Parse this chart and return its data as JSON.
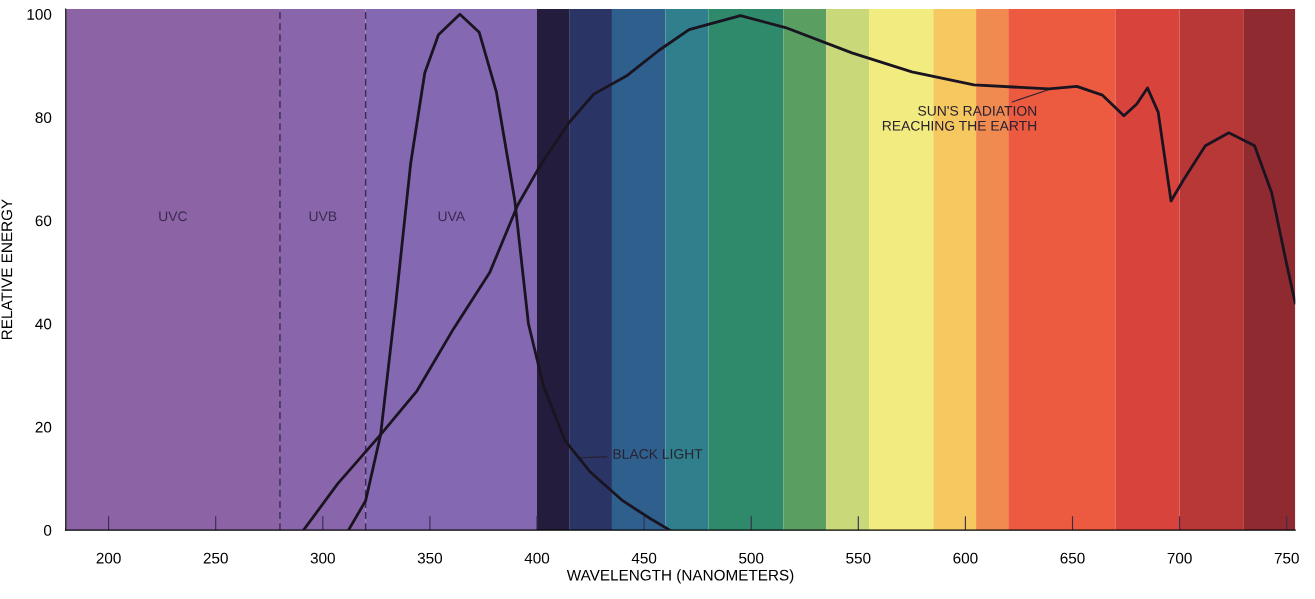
{
  "chart_data": {
    "type": "line",
    "xlabel": "WAVELENGTH (NANOMETERS)",
    "ylabel": "RELATIVE ENERGY",
    "xlim": [
      180,
      754
    ],
    "ylim": [
      0,
      101
    ],
    "xticks": [
      200,
      250,
      300,
      350,
      400,
      450,
      500,
      550,
      600,
      650,
      700,
      750
    ],
    "yticks": [
      0,
      20,
      40,
      60,
      80,
      100
    ],
    "grid": false,
    "legend": false,
    "marker": "none",
    "line_style": "solid",
    "series": [
      {
        "color": "#1a1420",
        "x": [
          312,
          320,
          327,
          334,
          341,
          347.6,
          354,
          364,
          373,
          381,
          389.6,
          396,
          403,
          413,
          425,
          440,
          453,
          462
        ],
        "values": [
          0,
          5.7,
          18.5,
          43.7,
          71,
          88.6,
          96,
          100,
          96.5,
          85,
          64,
          40,
          28,
          17.4,
          11.2,
          5.7,
          2.2,
          0
        ]
      },
      {
        "color": "#1a1420",
        "x": [
          291,
          307,
          327,
          344,
          361,
          378,
          391,
          402,
          415,
          426.5,
          441.7,
          457,
          471,
          495,
          516,
          547,
          575,
          604,
          639,
          652,
          664,
          674,
          680,
          685,
          690,
          696,
          702,
          712,
          723,
          735,
          743,
          750,
          754
        ],
        "values": [
          0,
          9,
          18.5,
          27,
          39,
          50,
          63,
          71,
          79,
          84.5,
          88,
          93,
          97,
          99.7,
          97.4,
          92.5,
          88.8,
          86.3,
          85.5,
          86,
          84.3,
          80.3,
          82.6,
          85.7,
          81,
          63.8,
          68,
          74.5,
          77,
          74.5,
          65.4,
          51.5,
          44
        ]
      }
    ],
    "ref_lines": [
      {
        "axis": "x",
        "value": 280,
        "color": "#3a2a50",
        "line_style": "dashed"
      },
      {
        "axis": "x",
        "value": 320,
        "color": "#3a2a50",
        "line_style": "dashed"
      }
    ],
    "bands": [
      {
        "axis": "x",
        "from": 180,
        "to": 280,
        "label": "UVC",
        "color": "#8c64a6"
      },
      {
        "axis": "x",
        "from": 280,
        "to": 320,
        "label": "UVB",
        "color": "#8966ab"
      },
      {
        "axis": "x",
        "from": 320,
        "to": 400,
        "label": "UVA",
        "color": "#8468b2"
      },
      {
        "axis": "x",
        "from": 400,
        "to": 415,
        "color": "#241c3c"
      },
      {
        "axis": "x",
        "from": 415,
        "to": 435,
        "color": "#2a3566"
      },
      {
        "axis": "x",
        "from": 435,
        "to": 460,
        "color": "#2f5f8c"
      },
      {
        "axis": "x",
        "from": 460,
        "to": 480,
        "color": "#2f7f8c"
      },
      {
        "axis": "x",
        "from": 480,
        "to": 515,
        "color": "#2e8a6a"
      },
      {
        "axis": "x",
        "from": 515,
        "to": 535,
        "color": "#5a9e62"
      },
      {
        "axis": "x",
        "from": 535,
        "to": 555,
        "color": "#c9d878"
      },
      {
        "axis": "x",
        "from": 555,
        "to": 585,
        "color": "#f2ec80"
      },
      {
        "axis": "x",
        "from": 585,
        "to": 605,
        "color": "#f6c860"
      },
      {
        "axis": "x",
        "from": 605,
        "to": 620,
        "color": "#f08a50"
      },
      {
        "axis": "x",
        "from": 620,
        "to": 670,
        "color": "#ec5a40"
      },
      {
        "axis": "x",
        "from": 670,
        "to": 700,
        "color": "#d8443c"
      },
      {
        "axis": "x",
        "from": 700,
        "to": 730,
        "color": "#b83838"
      },
      {
        "axis": "x",
        "from": 730,
        "to": 754,
        "color": "#8e2a30"
      }
    ],
    "annotations": [
      {
        "text": "SUN'S RADIATION\nREACHING THE EARTH",
        "x": 640,
        "y": 85.5
      },
      {
        "text": "BLACK LIGHT",
        "x": 419,
        "y": 14
      }
    ]
  }
}
